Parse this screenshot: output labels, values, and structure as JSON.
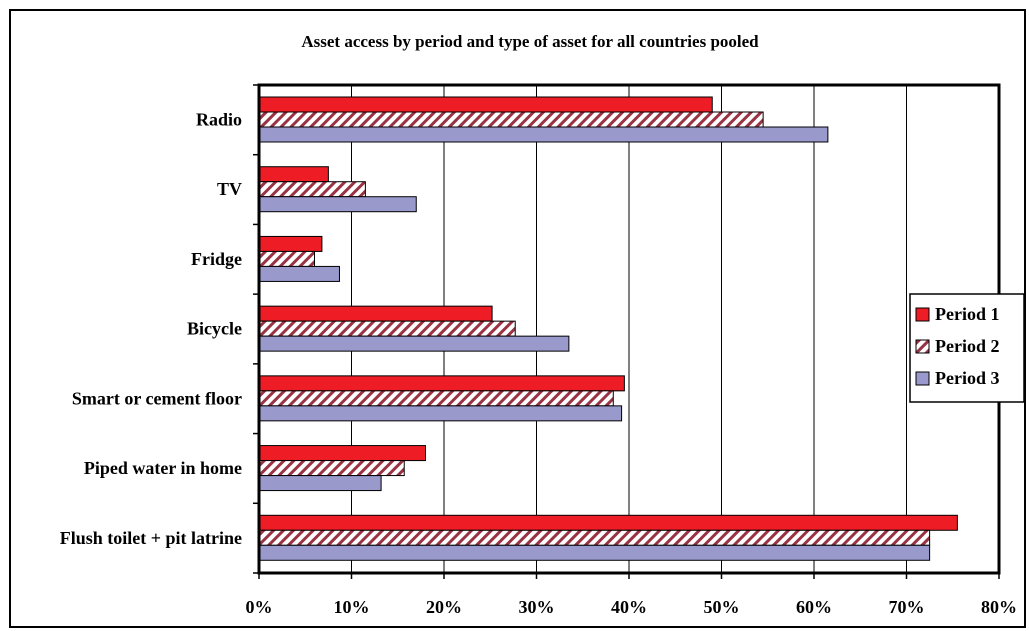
{
  "chart_data": {
    "type": "bar",
    "orientation": "horizontal",
    "title": "Asset access by period and type of asset for all countries pooled",
    "categories": [
      "Radio",
      "TV",
      "Fridge",
      "Bicycle",
      "Smart or cement floor",
      "Piped water in home",
      "Flush toilet + pit latrine"
    ],
    "series": [
      {
        "name": "Period 1",
        "values": [
          49,
          7.5,
          6.8,
          25.2,
          39.5,
          18,
          75.5
        ],
        "color": "#ee1c25",
        "pattern": "solid"
      },
      {
        "name": "Period 2",
        "values": [
          54.5,
          11.5,
          6,
          27.7,
          38.3,
          15.7,
          72.5
        ],
        "color": "#993344",
        "pattern": "hatched"
      },
      {
        "name": "Period 3",
        "values": [
          61.5,
          17,
          8.7,
          33.5,
          39.2,
          13.2,
          72.5
        ],
        "color": "#9999cc",
        "pattern": "solid"
      }
    ],
    "xlim": [
      0,
      80
    ],
    "x_ticks": [
      "0%",
      "10%",
      "20%",
      "30%",
      "40%",
      "50%",
      "60%",
      "70%",
      "80%"
    ],
    "grid": "vertical",
    "legend_position": "right"
  }
}
